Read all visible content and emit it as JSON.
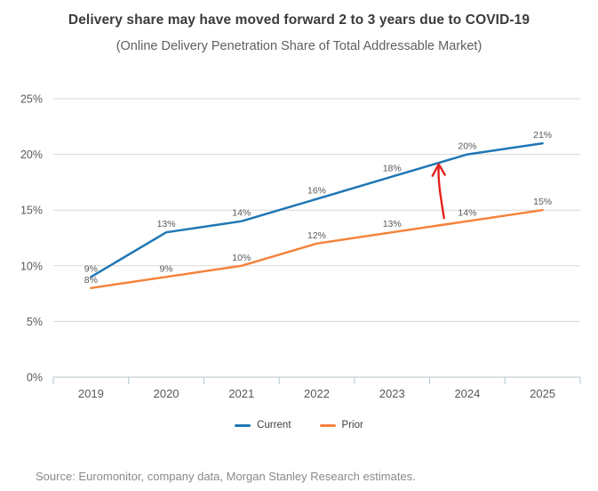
{
  "header": {
    "title": "Delivery share may have moved forward 2 to 3 years due to COVID-19",
    "subtitle": "(Online Delivery Penetration Share of Total Addressable Market)"
  },
  "chart_data": {
    "type": "line",
    "title": "Delivery share may have moved forward 2 to 3 years due to COVID-19",
    "subtitle": "(Online Delivery Penetration Share of Total Addressable Market)",
    "x": [
      "2019",
      "2020",
      "2021",
      "2022",
      "2023",
      "2024",
      "2025"
    ],
    "series": [
      {
        "name": "Current",
        "color": "#2077b4",
        "values": [
          9,
          13,
          14,
          16,
          18,
          20,
          21
        ]
      },
      {
        "name": "Prior",
        "color": "#f5823b",
        "values": [
          8,
          9,
          10,
          12,
          13,
          14,
          15
        ]
      }
    ],
    "ylim": [
      0,
      25
    ],
    "y_ticks": [
      0,
      5,
      10,
      15,
      20,
      25
    ],
    "y_tick_suffix": "%",
    "point_label_suffix": "%",
    "grid": "horizontal",
    "legend_position": "bottom",
    "colors": {
      "gridline": "#d9d9d9",
      "axis": "#b4c5ce",
      "tick_label": "#595959",
      "point_label": "#595959",
      "annotation": "#e3231c"
    },
    "annotation": {
      "type": "arrow",
      "color": "#e3231c",
      "description": "red arrow pointing up from the Prior line toward the Current line between 2023 and 2024"
    }
  },
  "footer": {
    "source": "Source: Euromonitor, company data, Morgan Stanley Research estimates."
  }
}
